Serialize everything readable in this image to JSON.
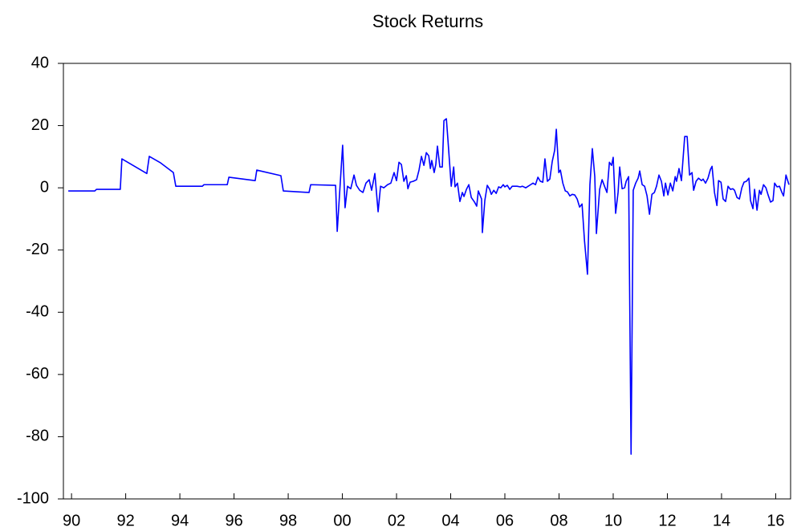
{
  "chart_data": {
    "type": "line",
    "title": "Stock Returns",
    "x": [
      1989.88,
      1990.86,
      1990.92,
      1991.8,
      1991.86,
      1992.78,
      1992.87,
      1993.29,
      1993.76,
      1993.85,
      1994.83,
      1994.89,
      1995.75,
      1995.81,
      1996.78,
      1996.84,
      1997.73,
      1997.82,
      1998.77,
      1998.83,
      1999.75,
      1999.81,
      2000.01,
      2000.1,
      2000.19,
      2000.31,
      2000.43,
      2000.52,
      2000.64,
      2000.76,
      2000.87,
      2000.99,
      2001.08,
      2001.2,
      2001.32,
      2001.41,
      2001.53,
      2001.67,
      2001.79,
      2001.91,
      2002.0,
      2002.09,
      2002.18,
      2002.27,
      2002.36,
      2002.42,
      2002.5,
      2002.62,
      2002.74,
      2002.83,
      2002.92,
      2003.01,
      2003.1,
      2003.19,
      2003.25,
      2003.3,
      2003.39,
      2003.45,
      2003.51,
      2003.6,
      2003.69,
      2003.75,
      2003.84,
      2003.9,
      2004.02,
      2004.11,
      2004.16,
      2004.25,
      2004.34,
      2004.43,
      2004.49,
      2004.58,
      2004.67,
      2004.76,
      2004.88,
      2004.96,
      2005.02,
      2005.14,
      2005.17,
      2005.26,
      2005.35,
      2005.44,
      2005.5,
      2005.59,
      2005.68,
      2005.77,
      2005.85,
      2005.94,
      2006.0,
      2006.09,
      2006.18,
      2006.27,
      2006.36,
      2006.45,
      2006.57,
      2006.65,
      2006.77,
      2006.86,
      2006.95,
      2007.04,
      2007.13,
      2007.22,
      2007.31,
      2007.4,
      2007.48,
      2007.57,
      2007.66,
      2007.75,
      2007.84,
      2007.9,
      2007.99,
      2008.05,
      2008.14,
      2008.23,
      2008.31,
      2008.4,
      2008.49,
      2008.58,
      2008.67,
      2008.76,
      2008.85,
      2008.94,
      2009.05,
      2009.14,
      2009.23,
      2009.32,
      2009.38,
      2009.5,
      2009.59,
      2009.68,
      2009.77,
      2009.86,
      2009.94,
      2010.0,
      2010.09,
      2010.18,
      2010.24,
      2010.33,
      2010.42,
      2010.48,
      2010.57,
      2010.66,
      2010.74,
      2010.83,
      2010.92,
      2010.98,
      2011.07,
      2011.16,
      2011.25,
      2011.34,
      2011.43,
      2011.52,
      2011.6,
      2011.69,
      2011.78,
      2011.87,
      2011.93,
      2012.02,
      2012.11,
      2012.2,
      2012.29,
      2012.34,
      2012.43,
      2012.52,
      2012.64,
      2012.73,
      2012.82,
      2012.91,
      2012.97,
      2013.06,
      2013.15,
      2013.26,
      2013.32,
      2013.41,
      2013.5,
      2013.59,
      2013.65,
      2013.74,
      2013.83,
      2013.89,
      2013.98,
      2014.06,
      2014.15,
      2014.24,
      2014.33,
      2014.42,
      2014.48,
      2014.57,
      2014.66,
      2014.75,
      2014.83,
      2014.92,
      2015.01,
      2015.07,
      2015.16,
      2015.22,
      2015.31,
      2015.4,
      2015.46,
      2015.55,
      2015.64,
      2015.72,
      2015.81,
      2015.9,
      2015.96,
      2016.05,
      2016.14,
      2016.23,
      2016.29,
      2016.38,
      2016.49
    ],
    "series": [
      {
        "name": "Stock Returns",
        "color": "#0000ff",
        "values": [
          -1.0,
          -1.0,
          -0.5,
          -0.5,
          9.3,
          4.6,
          10.1,
          8.0,
          4.9,
          0.5,
          0.5,
          1.0,
          1.0,
          3.4,
          2.3,
          5.7,
          3.9,
          -1.0,
          -1.5,
          1.0,
          0.8,
          -14.0,
          13.7,
          -6.4,
          0.5,
          -0.3,
          4.1,
          0.8,
          -0.8,
          -1.5,
          1.5,
          2.6,
          -0.8,
          4.6,
          -7.7,
          0.5,
          0,
          1.0,
          1.5,
          4.9,
          2.3,
          8.2,
          7.5,
          2.1,
          3.9,
          -0.3,
          1.8,
          2.1,
          2.6,
          5.7,
          10.1,
          7.2,
          11.3,
          10.3,
          6.2,
          8.8,
          4.9,
          7.5,
          13.4,
          6.7,
          6.7,
          21.6,
          22.2,
          15.2,
          0.5,
          6.7,
          0.3,
          1.5,
          -4.4,
          -1.5,
          -2.8,
          -0.5,
          1.0,
          -3.1,
          -4.6,
          -5.9,
          -1.0,
          -3.6,
          -14.4,
          -4.1,
          0.8,
          -0.5,
          -2.1,
          -0.8,
          -1.8,
          0.3,
          0,
          1.0,
          0.3,
          0.8,
          -0.5,
          0.5,
          0.5,
          0.5,
          0.3,
          0.5,
          0,
          0.5,
          1.0,
          1.5,
          1.0,
          3.4,
          2.1,
          1.8,
          9.3,
          2.1,
          2.8,
          8.5,
          12.1,
          18.8,
          4.9,
          5.7,
          1.5,
          -1.0,
          -1.3,
          -2.6,
          -2.1,
          -2.3,
          -3.6,
          -6.2,
          -5.2,
          -17.0,
          -27.8,
          1.0,
          12.6,
          3.6,
          -14.7,
          -0.5,
          2.6,
          0.5,
          -1.5,
          8.2,
          7.2,
          9.8,
          -8.2,
          -1.5,
          6.7,
          -0.3,
          0,
          2.1,
          3.6,
          -85.6,
          -0.8,
          1.5,
          3.1,
          5.4,
          1.0,
          0.5,
          -2.6,
          -8.5,
          -2.1,
          -1.5,
          0.5,
          4.1,
          2.1,
          -2.6,
          1.5,
          -2.3,
          1.5,
          -1.0,
          3.6,
          2.1,
          6.2,
          2.3,
          16.5,
          16.5,
          4.1,
          4.9,
          -0.8,
          2.1,
          3.1,
          2.3,
          2.8,
          1.5,
          3.1,
          5.9,
          6.9,
          -1.5,
          -5.7,
          2.3,
          1.8,
          -3.6,
          -4.4,
          0.5,
          -0.5,
          -0.3,
          -0.8,
          -3.1,
          -3.6,
          0,
          1.8,
          2.1,
          3.1,
          -4.1,
          -6.7,
          -0.5,
          -7.2,
          -0.8,
          -2.1,
          1.0,
          0,
          -2.3,
          -4.6,
          -4.1,
          1.5,
          0.3,
          0.5,
          -1.5,
          -2.6,
          4.1,
          1.0
        ]
      }
    ],
    "xlim": [
      1989.7,
      2016.55
    ],
    "xticks": [
      {
        "value": 1990,
        "label": "90"
      },
      {
        "value": 1992,
        "label": "92"
      },
      {
        "value": 1994,
        "label": "94"
      },
      {
        "value": 1996,
        "label": "96"
      },
      {
        "value": 1998,
        "label": "98"
      },
      {
        "value": 2000,
        "label": "00"
      },
      {
        "value": 2002,
        "label": "02"
      },
      {
        "value": 2004,
        "label": "04"
      },
      {
        "value": 2006,
        "label": "06"
      },
      {
        "value": 2008,
        "label": "08"
      },
      {
        "value": 2010,
        "label": "10"
      },
      {
        "value": 2012,
        "label": "12"
      },
      {
        "value": 2014,
        "label": "14"
      },
      {
        "value": 2016,
        "label": "16"
      }
    ],
    "ylim": [
      -100,
      40
    ],
    "yticks": [
      -100,
      -80,
      -60,
      -40,
      -20,
      0,
      20,
      40
    ],
    "grid": false
  }
}
